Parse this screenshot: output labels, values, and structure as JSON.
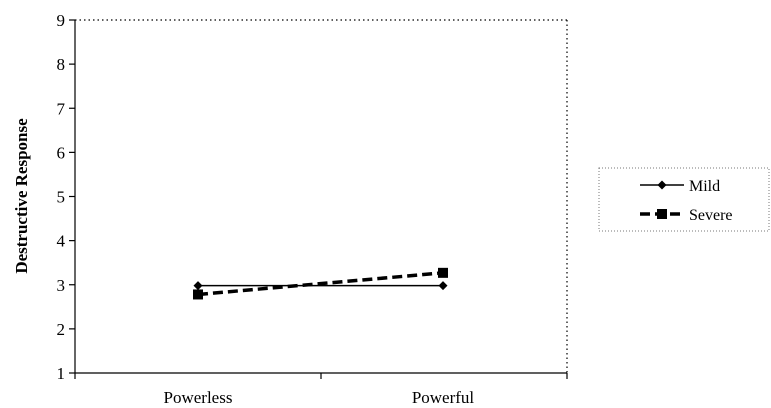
{
  "chart_data": {
    "type": "line",
    "title": "",
    "xlabel": "",
    "ylabel": "Destructive Response",
    "categories": [
      "Powerless",
      "Powerful"
    ],
    "ylim": [
      1,
      9
    ],
    "yticks": [
      1,
      2,
      3,
      4,
      5,
      6,
      7,
      8,
      9
    ],
    "grid": false,
    "legend_position": "right",
    "series": [
      {
        "name": "Mild",
        "values": [
          2.98,
          2.98
        ],
        "style": "solid",
        "marker": "diamond",
        "color": "#000000"
      },
      {
        "name": "Severe",
        "values": [
          2.78,
          3.27
        ],
        "style": "dashed",
        "marker": "square",
        "color": "#000000"
      }
    ]
  }
}
